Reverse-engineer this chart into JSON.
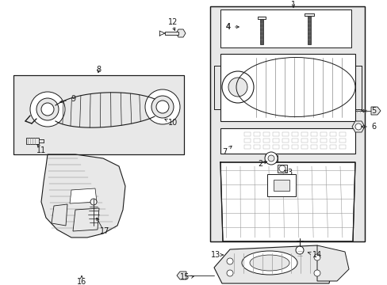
{
  "bg_color": "#ffffff",
  "line_color": "#1a1a1a",
  "gray_fill": "#d8d8d8",
  "light_gray": "#e8e8e8",
  "fig_width": 4.89,
  "fig_height": 3.6,
  "dpi": 100,
  "font_size": 7.0,
  "font_size_small": 6.0
}
